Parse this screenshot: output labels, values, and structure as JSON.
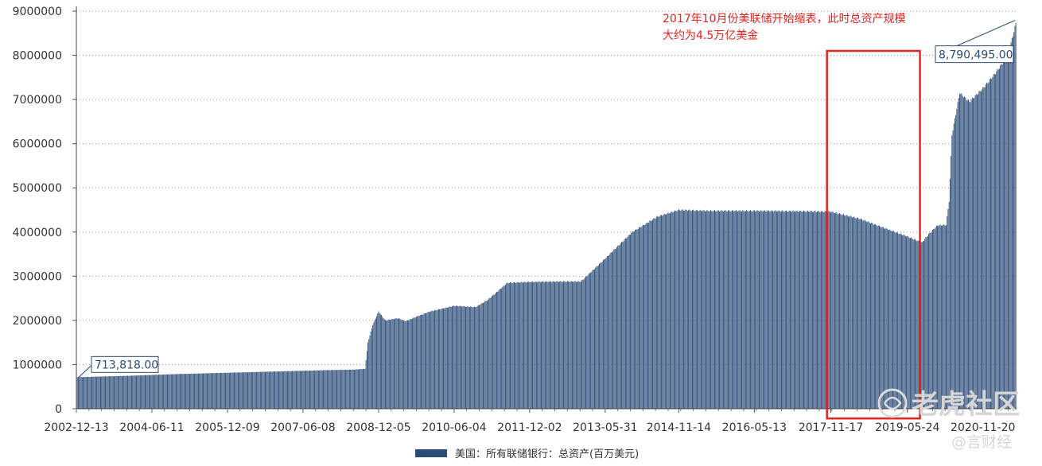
{
  "chart_data": {
    "type": "bar",
    "title": "",
    "xlabel": "",
    "ylabel": "",
    "ylim": [
      0,
      9000000
    ],
    "y_ticks": [
      0,
      1000000,
      2000000,
      3000000,
      4000000,
      5000000,
      6000000,
      7000000,
      8000000,
      9000000
    ],
    "x_tick_labels": [
      "2002-12-13",
      "2004-06-11",
      "2005-12-09",
      "2007-06-08",
      "2008-12-05",
      "2010-06-04",
      "2011-12-02",
      "2013-05-31",
      "2014-11-14",
      "2016-05-13",
      "2017-11-17",
      "2019-05-24",
      "2020-11-20"
    ],
    "grid": true,
    "legend_position": "bottom",
    "x_start": "2002-12-13",
    "x_end": "2021-07-21",
    "series": [
      {
        "name": "美国：所有联储银行：总资产(百万美元)",
        "color": "#2b4c78",
        "points": [
          [
            "2002-12-13",
            713818
          ],
          [
            "2003-06-13",
            730000
          ],
          [
            "2003-12-12",
            745000
          ],
          [
            "2004-06-11",
            765000
          ],
          [
            "2004-12-10",
            785000
          ],
          [
            "2005-06-10",
            800000
          ],
          [
            "2005-12-09",
            815000
          ],
          [
            "2006-06-09",
            830000
          ],
          [
            "2006-12-08",
            845000
          ],
          [
            "2007-06-08",
            860000
          ],
          [
            "2007-12-07",
            875000
          ],
          [
            "2008-06-06",
            885000
          ],
          [
            "2008-08-29",
            905000
          ],
          [
            "2008-09-19",
            1500000
          ],
          [
            "2008-10-24",
            1900000
          ],
          [
            "2008-12-05",
            2200000
          ],
          [
            "2009-01-23",
            2000000
          ],
          [
            "2009-04-24",
            2050000
          ],
          [
            "2009-06-19",
            1980000
          ],
          [
            "2009-09-18",
            2100000
          ],
          [
            "2009-12-11",
            2200000
          ],
          [
            "2010-06-04",
            2330000
          ],
          [
            "2010-11-05",
            2300000
          ],
          [
            "2011-01-28",
            2450000
          ],
          [
            "2011-06-24",
            2850000
          ],
          [
            "2011-12-02",
            2870000
          ],
          [
            "2012-06-08",
            2880000
          ],
          [
            "2012-12-07",
            2880000
          ],
          [
            "2013-05-31",
            3400000
          ],
          [
            "2013-12-13",
            4000000
          ],
          [
            "2014-06-13",
            4350000
          ],
          [
            "2014-11-14",
            4500000
          ],
          [
            "2015-06-12",
            4480000
          ],
          [
            "2016-05-13",
            4480000
          ],
          [
            "2017-05-12",
            4470000
          ],
          [
            "2017-11-17",
            4460000
          ],
          [
            "2018-06-15",
            4300000
          ],
          [
            "2019-01-11",
            4050000
          ],
          [
            "2019-05-24",
            3900000
          ],
          [
            "2019-09-06",
            3760000
          ],
          [
            "2019-10-25",
            3950000
          ],
          [
            "2019-12-27",
            4150000
          ],
          [
            "2020-02-28",
            4160000
          ],
          [
            "2020-03-20",
            4700000
          ],
          [
            "2020-04-10",
            6200000
          ],
          [
            "2020-06-05",
            7150000
          ],
          [
            "2020-08-14",
            6950000
          ],
          [
            "2020-11-20",
            7250000
          ],
          [
            "2021-02-19",
            7600000
          ],
          [
            "2021-05-21",
            8000000
          ],
          [
            "2021-07-21",
            8790495
          ]
        ]
      }
    ],
    "callouts": [
      {
        "label": "713,818.00",
        "date": "2002-12-13",
        "value": 713818
      },
      {
        "label": "8,790,495.00",
        "date": "2021-07-21",
        "value": 8790495
      }
    ],
    "annotation": {
      "text_line1": "2017年10月份美联储开始缩表，此时总资产规模",
      "text_line2": "大约为4.5万亿美金",
      "color": "#e8231f",
      "box_from": "2017-10-20",
      "box_to": "2019-08-23",
      "box_top_value": 8100000,
      "box_bottom_value": -220000
    }
  },
  "watermark": {
    "main": "老虎社区",
    "sub": "@言财经"
  }
}
